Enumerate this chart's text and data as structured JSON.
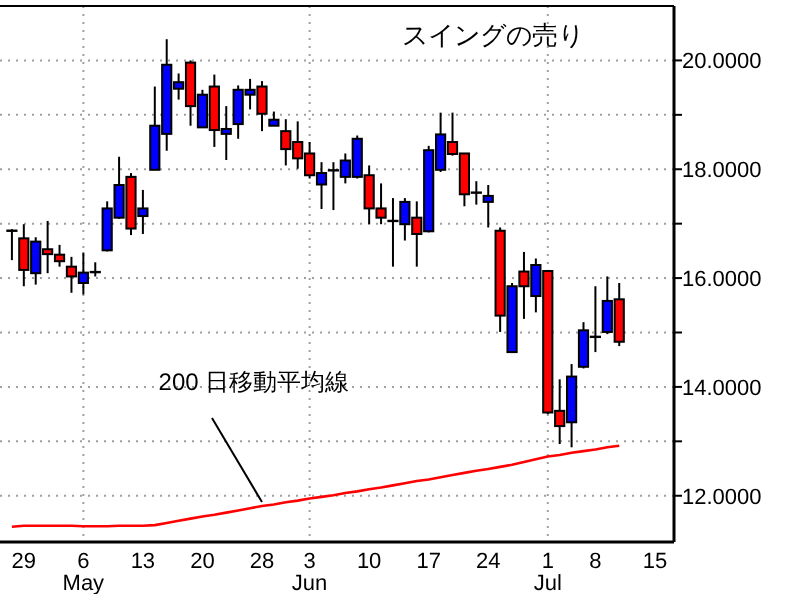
{
  "chart_data": {
    "type": "candlestick",
    "title": "スイングの売り",
    "categories": [
      null,
      "29",
      null,
      null,
      null,
      null,
      "6\nMay",
      null,
      null,
      null,
      null,
      "13",
      null,
      null,
      null,
      null,
      "20",
      null,
      null,
      null,
      null,
      "28",
      null,
      null,
      null,
      "3\nJun",
      null,
      null,
      null,
      null,
      "10",
      null,
      null,
      null,
      null,
      "17",
      null,
      null,
      null,
      null,
      "24",
      null,
      null,
      null,
      null,
      "1\nJul",
      null,
      null,
      null,
      "8",
      null,
      null,
      null,
      null,
      "15"
    ],
    "ohlc": [
      [
        16.87,
        16.9,
        16.33,
        16.87
      ],
      [
        16.73,
        16.99,
        15.85,
        16.15
      ],
      [
        16.09,
        16.75,
        15.88,
        16.67
      ],
      [
        16.53,
        17.05,
        16.09,
        16.44
      ],
      [
        16.43,
        16.61,
        16.21,
        16.31
      ],
      [
        16.21,
        16.39,
        15.73,
        16.03
      ],
      [
        15.91,
        16.47,
        15.7,
        16.1
      ],
      [
        16.11,
        16.29,
        16.03,
        16.11
      ],
      [
        16.51,
        17.41,
        16.49,
        17.28
      ],
      [
        17.11,
        18.23,
        17.09,
        17.71
      ],
      [
        17.86,
        17.93,
        16.79,
        16.91
      ],
      [
        17.14,
        17.62,
        16.81,
        17.28
      ],
      [
        17.99,
        19.52,
        17.99,
        18.8
      ],
      [
        18.65,
        20.39,
        18.34,
        19.92
      ],
      [
        19.48,
        19.76,
        19.28,
        19.6
      ],
      [
        19.96,
        20.0,
        18.8,
        19.16
      ],
      [
        18.77,
        19.46,
        18.77,
        19.37
      ],
      [
        19.52,
        19.74,
        18.41,
        18.72
      ],
      [
        18.65,
        19.16,
        18.17,
        18.74
      ],
      [
        18.83,
        19.54,
        18.56,
        19.46
      ],
      [
        19.37,
        19.66,
        19.1,
        19.46
      ],
      [
        19.52,
        19.62,
        18.7,
        19.02
      ],
      [
        18.8,
        19.06,
        18.8,
        18.91
      ],
      [
        18.7,
        18.92,
        18.07,
        18.37
      ],
      [
        18.5,
        18.88,
        18.01,
        18.2
      ],
      [
        18.29,
        18.5,
        17.83,
        17.89
      ],
      [
        17.72,
        18.13,
        17.27,
        17.93
      ],
      [
        17.98,
        18.13,
        17.25,
        17.98
      ],
      [
        17.86,
        18.29,
        17.74,
        18.16
      ],
      [
        17.86,
        18.62,
        17.83,
        18.56
      ],
      [
        17.89,
        18.07,
        16.99,
        17.28
      ],
      [
        17.28,
        17.74,
        16.99,
        17.11
      ],
      [
        17.05,
        17.47,
        16.21,
        17.05
      ],
      [
        16.99,
        17.47,
        16.69,
        17.4
      ],
      [
        17.11,
        17.41,
        16.21,
        16.81
      ],
      [
        16.86,
        18.43,
        16.84,
        18.35
      ],
      [
        17.99,
        19.04,
        17.95,
        18.64
      ],
      [
        18.5,
        19.04,
        18.25,
        18.28
      ],
      [
        18.29,
        18.29,
        17.32,
        17.54
      ],
      [
        17.57,
        17.78,
        17.35,
        17.57
      ],
      [
        17.4,
        17.71,
        16.93,
        17.51
      ],
      [
        16.87,
        16.93,
        15.01,
        15.31
      ],
      [
        14.64,
        15.91,
        14.64,
        15.85
      ],
      [
        16.12,
        16.48,
        15.25,
        15.85
      ],
      [
        15.67,
        16.36,
        15.37,
        16.24
      ],
      [
        16.13,
        16.15,
        13.5,
        13.53
      ],
      [
        13.56,
        14.14,
        12.95,
        13.28
      ],
      [
        13.35,
        14.42,
        12.89,
        14.19
      ],
      [
        14.37,
        15.19,
        14.34,
        15.04
      ],
      [
        14.92,
        15.85,
        14.64,
        14.92
      ],
      [
        15.01,
        16.03,
        14.97,
        15.58
      ],
      [
        15.61,
        15.91,
        14.75,
        14.83
      ],
      null,
      null,
      null
    ],
    "colors": [
      "#000000",
      "#ff0000",
      "#0000ff",
      "#ff0000",
      "#ff0000",
      "#ff0000",
      "#0000ff",
      "#000000",
      "#0000ff",
      "#0000ff",
      "#ff0000",
      "#0000ff",
      "#0000ff",
      "#0000ff",
      "#0000ff",
      "#ff0000",
      "#0000ff",
      "#ff0000",
      "#0000ff",
      "#0000ff",
      "#0000ff",
      "#ff0000",
      "#0000ff",
      "#ff0000",
      "#ff0000",
      "#ff0000",
      "#0000ff",
      "#000000",
      "#0000ff",
      "#0000ff",
      "#ff0000",
      "#ff0000",
      "#000000",
      "#0000ff",
      "#ff0000",
      "#0000ff",
      "#0000ff",
      "#ff0000",
      "#ff0000",
      "#000000",
      "#0000ff",
      "#ff0000",
      "#0000ff",
      "#ff0000",
      "#0000ff",
      "#ff0000",
      "#ff0000",
      "#0000ff",
      "#0000ff",
      "#000000",
      "#0000ff",
      "#ff0000",
      null,
      null,
      null
    ],
    "series": [
      {
        "type": "line",
        "color": "#ff0000",
        "values": [
          11.43,
          11.45,
          11.45,
          11.45,
          11.45,
          11.45,
          11.44,
          11.44,
          11.44,
          11.45,
          11.45,
          11.45,
          11.46,
          11.5,
          11.54,
          11.58,
          11.62,
          11.65,
          11.69,
          11.73,
          11.77,
          11.81,
          11.84,
          11.88,
          11.91,
          11.95,
          11.98,
          12.01,
          12.05,
          12.08,
          12.12,
          12.15,
          12.19,
          12.23,
          12.27,
          12.3,
          12.34,
          12.38,
          12.42,
          12.46,
          12.49,
          12.53,
          12.57,
          12.62,
          12.67,
          12.72,
          12.75,
          12.79,
          12.82,
          12.85,
          12.89,
          12.92,
          null,
          null,
          null
        ]
      }
    ],
    "ylim": [
      11.15,
      21.0
    ],
    "yticks": [
      {
        "value": 12,
        "label": "12.0000"
      },
      {
        "value": 13,
        "label": null
      },
      {
        "value": 14,
        "label": "14.0000"
      },
      {
        "value": 15,
        "label": null
      },
      {
        "value": 16,
        "label": "16.0000"
      },
      {
        "value": 17,
        "label": null
      },
      {
        "value": 18,
        "label": "18.0000"
      },
      {
        "value": 19,
        "label": null
      },
      {
        "value": 20,
        "label": "20.0000"
      }
    ],
    "grid": "y",
    "annotations": [
      {
        "text": "200 日移動平均線",
        "x": "28",
        "y": 11.81
      }
    ]
  }
}
